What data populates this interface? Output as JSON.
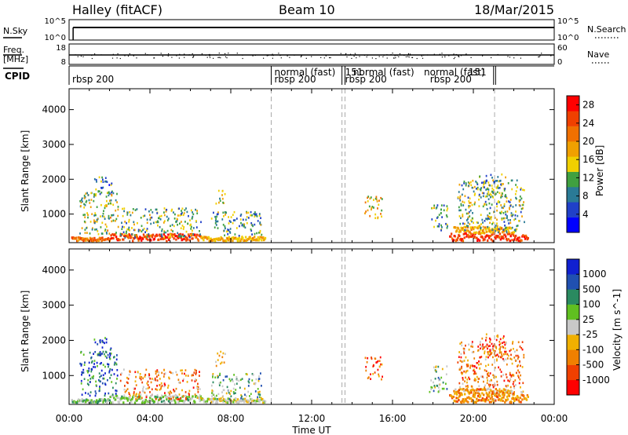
{
  "header": {
    "station": "Halley (fitACF)",
    "beam": "Beam 10",
    "date": "18/Mar/2015"
  },
  "strips": {
    "nsky": {
      "label": "N.Sky",
      "left_ticks": [
        "10^5",
        "10^0"
      ],
      "right_label": "N.Search",
      "right_ticks": [
        "10^5",
        "10^0"
      ]
    },
    "freq": {
      "label_line1": "Freq.",
      "label_line2": "[MHz]",
      "left_ticks": [
        "18",
        "8"
      ],
      "right_label": "Nave",
      "right_ticks": [
        "60",
        "0"
      ]
    },
    "cpid": {
      "label": "CPID",
      "entries": [
        {
          "t_hours": 0.0,
          "text": "rbsp 200",
          "row": 2
        },
        {
          "t_hours": 10.0,
          "text": "normal (fast)",
          "row": 1
        },
        {
          "t_hours": 10.0,
          "text": "rbsp 200",
          "row": 2
        },
        {
          "t_hours": 13.5,
          "text": "151",
          "row": 1
        },
        {
          "t_hours": 13.9,
          "text": "normal (fast)",
          "row": 1
        },
        {
          "t_hours": 13.5,
          "text": "rbsp 200",
          "row": 2
        },
        {
          "t_hours": 17.4,
          "text": "normal (fast)",
          "row": 1
        },
        {
          "t_hours": 19.6,
          "text": "151",
          "row": 1
        },
        {
          "t_hours": 17.7,
          "text": "rbsp 200",
          "row": 2
        }
      ],
      "boundaries_hours": [
        10.0,
        13.5,
        13.65,
        21.0,
        21.1
      ]
    }
  },
  "chart_data": [
    {
      "type": "heatmap",
      "title": "",
      "xlabel": "",
      "ylabel": "Slant Range [km]",
      "xlim": [
        0,
        24
      ],
      "ylim": [
        180,
        4600
      ],
      "x_tick_labels": [
        "00:00",
        "04:00",
        "08:00",
        "12:00",
        "16:00",
        "20:00",
        "00:00"
      ],
      "y_ticks": [
        1000,
        2000,
        3000,
        4000
      ],
      "colorbar": {
        "label": "Power [dB]",
        "ticks": [
          4,
          8,
          12,
          16,
          20,
          24,
          28
        ],
        "range": [
          0,
          30
        ],
        "colors": [
          "#0000ff",
          "#2040c8",
          "#2a7a96",
          "#40a040",
          "#f0d000",
          "#f0a000",
          "#f07000",
          "#f04000",
          "#ff0000"
        ]
      },
      "dashed_vlines_hours": [
        10.0,
        13.5,
        13.65,
        21.05
      ],
      "clusters": [
        {
          "t0": 0.5,
          "t1": 2.4,
          "r0": 450,
          "r1": 1700,
          "level": 0.45
        },
        {
          "t0": 1.2,
          "t1": 2.1,
          "r0": 1600,
          "r1": 2100,
          "level": 0.3
        },
        {
          "t0": 2.5,
          "t1": 6.5,
          "r0": 350,
          "r1": 1200,
          "level": 0.4
        },
        {
          "t0": 7.2,
          "t1": 7.7,
          "r0": 1300,
          "r1": 1750,
          "level": 0.45
        },
        {
          "t0": 7.0,
          "t1": 9.5,
          "r0": 350,
          "r1": 1100,
          "level": 0.35
        },
        {
          "t0": 14.6,
          "t1": 15.5,
          "r0": 900,
          "r1": 1550,
          "level": 0.55
        },
        {
          "t0": 17.8,
          "t1": 18.7,
          "r0": 550,
          "r1": 1300,
          "level": 0.35
        },
        {
          "t0": 19.2,
          "t1": 22.5,
          "r0": 500,
          "r1": 2000,
          "level": 0.4
        },
        {
          "t0": 20.2,
          "t1": 21.6,
          "r0": 1500,
          "r1": 2200,
          "level": 0.35
        }
      ],
      "bands": [
        {
          "t0": 0.1,
          "t1": 2.0,
          "r0": 200,
          "r1": 300,
          "level": 0.75
        },
        {
          "t0": 2.0,
          "t1": 6.5,
          "r0": 200,
          "r1": 400,
          "level": 0.85
        },
        {
          "t0": 6.5,
          "t1": 9.7,
          "r0": 200,
          "r1": 320,
          "level": 0.6
        },
        {
          "t0": 18.8,
          "t1": 22.7,
          "r0": 200,
          "r1": 420,
          "level": 0.85
        },
        {
          "t0": 19.0,
          "t1": 22.0,
          "r0": 420,
          "r1": 600,
          "level": 0.6
        }
      ]
    },
    {
      "type": "heatmap",
      "title": "",
      "xlabel": "Time UT",
      "ylabel": "Slant Range [km]",
      "xlim": [
        0,
        24
      ],
      "ylim": [
        180,
        4600
      ],
      "x_tick_labels": [
        "00:00",
        "04:00",
        "08:00",
        "12:00",
        "16:00",
        "20:00",
        "00:00"
      ],
      "y_ticks": [
        1000,
        2000,
        3000,
        4000
      ],
      "colorbar": {
        "label": "Velocity [m s^-1]",
        "ticks": [
          "-1000",
          "-500",
          "-100",
          "-25",
          "25",
          "100",
          "500",
          "1000"
        ],
        "colors": [
          "#ff0000",
          "#f04000",
          "#f08000",
          "#f0b000",
          "#c8c8c8",
          "#60c020",
          "#2a8a60",
          "#2050b0",
          "#1020d0"
        ]
      },
      "dashed_vlines_hours": [
        10.0,
        13.5,
        13.65,
        21.05
      ],
      "clusters": [
        {
          "t0": 0.5,
          "t1": 2.4,
          "r0": 450,
          "r1": 1700,
          "level": 0.82
        },
        {
          "t0": 1.2,
          "t1": 2.1,
          "r0": 1600,
          "r1": 2100,
          "level": 0.85
        },
        {
          "t0": 2.5,
          "t1": 6.5,
          "r0": 350,
          "r1": 1200,
          "level": 0.3
        },
        {
          "t0": 7.2,
          "t1": 7.7,
          "r0": 1300,
          "r1": 1750,
          "level": 0.35
        },
        {
          "t0": 7.0,
          "t1": 9.5,
          "r0": 350,
          "r1": 1100,
          "level": 0.6
        },
        {
          "t0": 14.6,
          "t1": 15.5,
          "r0": 900,
          "r1": 1550,
          "level": 0.15
        },
        {
          "t0": 17.8,
          "t1": 18.7,
          "r0": 550,
          "r1": 1300,
          "level": 0.6
        },
        {
          "t0": 19.2,
          "t1": 22.5,
          "r0": 500,
          "r1": 2000,
          "level": 0.3
        },
        {
          "t0": 20.2,
          "t1": 21.6,
          "r0": 1500,
          "r1": 2200,
          "level": 0.2
        }
      ],
      "bands": [
        {
          "t0": 0.1,
          "t1": 2.0,
          "r0": 200,
          "r1": 300,
          "level": 0.62
        },
        {
          "t0": 2.0,
          "t1": 6.5,
          "r0": 200,
          "r1": 400,
          "level": 0.58
        },
        {
          "t0": 6.5,
          "t1": 9.7,
          "r0": 200,
          "r1": 320,
          "level": 0.5
        },
        {
          "t0": 18.8,
          "t1": 22.7,
          "r0": 200,
          "r1": 420,
          "level": 0.3
        },
        {
          "t0": 19.0,
          "t1": 22.0,
          "r0": 420,
          "r1": 600,
          "level": 0.35
        }
      ]
    }
  ]
}
